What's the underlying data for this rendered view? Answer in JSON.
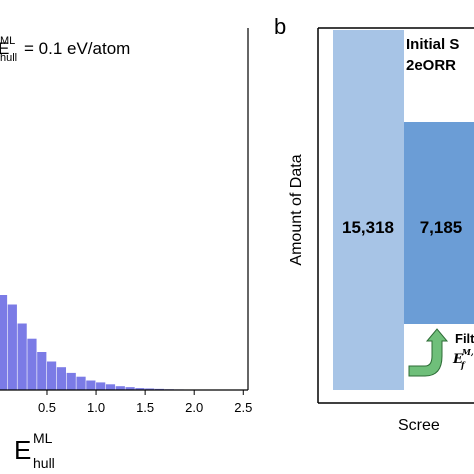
{
  "panel_a": {
    "annotation": {
      "superscript": "ML",
      "subscript": "hull",
      "value_text": "= 0.1 eV/atom"
    },
    "xaxis_label": {
      "main": "E",
      "superscript": "ML",
      "subscript": "hull"
    }
  },
  "panel_b": {
    "panel_label": "b",
    "ylabel": "Amount of Data",
    "xlabel_partial": "Scree",
    "header_line1": "Initial S",
    "header_line2": "2eORR",
    "filter_text": "Filt",
    "filter_formula_main": "E",
    "filter_formula_sub": "f",
    "filter_formula_sup": "M,"
  },
  "colors": {
    "histogram_bar": "#7b7be6",
    "bar_initial": "#a7c4e6",
    "bar_second": "#6b9dd6",
    "arrow": "#6fbf7a"
  },
  "chart_data": [
    {
      "type": "bar",
      "title": "",
      "xlabel": "E_hull^ML",
      "ylabel": "",
      "xlim": [
        -0.05,
        2.65
      ],
      "ylim": [
        0,
        1
      ],
      "x_ticks": [
        "0.5",
        "1.0",
        "1.5",
        "2.0",
        "2.5"
      ],
      "x_tick_values": [
        0.5,
        1.0,
        1.5,
        2.0,
        2.5
      ],
      "bin_width": 0.1,
      "bins_start": [
        0.0,
        0.1,
        0.2,
        0.3,
        0.4,
        0.5,
        0.6,
        0.7,
        0.8,
        0.9,
        1.0,
        1.1,
        1.2,
        1.3,
        1.4,
        1.5,
        1.6,
        1.7,
        1.8,
        1.9,
        2.0,
        2.1,
        2.2,
        2.3,
        2.4
      ],
      "values": [
        0.5,
        0.45,
        0.35,
        0.27,
        0.2,
        0.15,
        0.12,
        0.09,
        0.07,
        0.05,
        0.04,
        0.03,
        0.02,
        0.015,
        0.01,
        0.008,
        0.006,
        0.004,
        0.003,
        0.002,
        0.002,
        0.001,
        0.001,
        0.001,
        0.0005
      ],
      "annotations": [
        "E_hull^ML = 0.1 eV/atom"
      ]
    },
    {
      "type": "bar",
      "title": "",
      "xlabel": "Scree",
      "ylabel": "Amount of Data",
      "categories": [
        "Initial S",
        "2eORR"
      ],
      "values": [
        15318,
        7185
      ],
      "data_labels": [
        "15,318",
        "7,185"
      ],
      "ylim": [
        0,
        15318
      ]
    }
  ]
}
